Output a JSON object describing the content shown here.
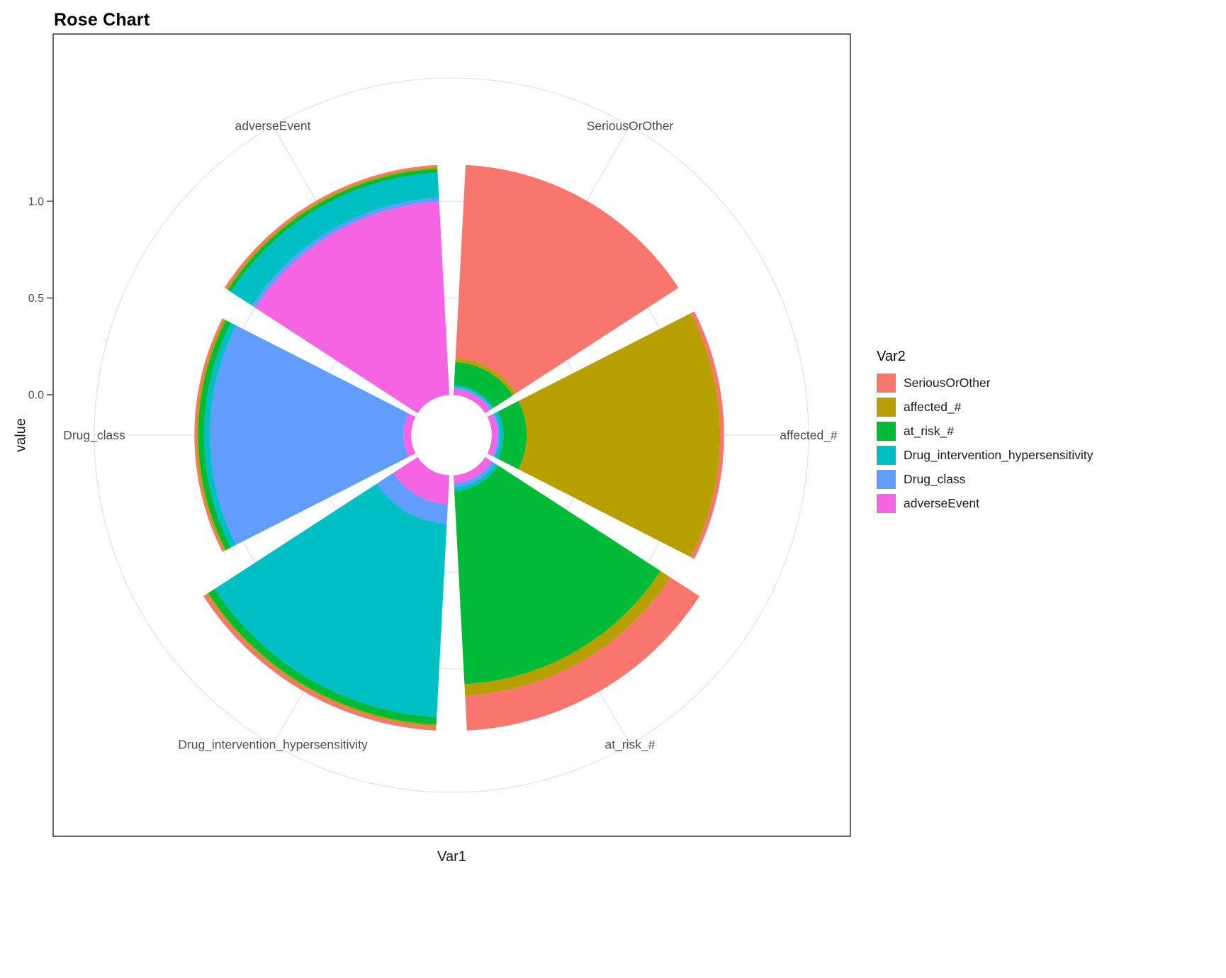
{
  "title": "Rose Chart",
  "axes": {
    "x_label": "Var1",
    "y_label": "value",
    "radial_tick_labels": [
      "1.0",
      "0.5",
      "0.0"
    ]
  },
  "legend": {
    "title": "Var2",
    "items": [
      {
        "label": "SeriousOrOther",
        "color": "#F8766D"
      },
      {
        "label": "affected_#",
        "color": "#B79F00"
      },
      {
        "label": "at_risk_#",
        "color": "#00BA38"
      },
      {
        "label": "Drug_intervention_hypersensitivity",
        "color": "#00BFC4"
      },
      {
        "label": "Drug_class",
        "color": "#619CFF"
      },
      {
        "label": "adverseEvent",
        "color": "#F564E3"
      }
    ]
  },
  "chart_data": {
    "type": "bar",
    "polar": true,
    "title": "Rose Chart",
    "xlabel": "Var1",
    "ylabel": "value",
    "categories": [
      "SeriousOrOther",
      "affected_#",
      "at_risk_#",
      "Drug_intervention_hypersensitivity",
      "Drug_class",
      "adverseEvent"
    ],
    "series": [
      {
        "name": "SeriousOrOther",
        "color": "#F8766D",
        "values": [
          1.0,
          0.02,
          0.18,
          0.02,
          0.01,
          0.01
        ]
      },
      {
        "name": "affected_#",
        "color": "#B79F00",
        "values": [
          0.02,
          1.0,
          0.06,
          0.01,
          0.01,
          0.01
        ]
      },
      {
        "name": "at_risk_#",
        "color": "#00BA38",
        "values": [
          0.12,
          0.12,
          1.0,
          0.04,
          0.03,
          0.02
        ]
      },
      {
        "name": "Drug_intervention_hypersensitivity",
        "color": "#00BFC4",
        "values": [
          0.01,
          0.02,
          0.02,
          1.0,
          0.03,
          0.13
        ]
      },
      {
        "name": "Drug_class",
        "color": "#619CFF",
        "values": [
          0.01,
          0.01,
          0.02,
          0.1,
          1.0,
          0.02
        ]
      },
      {
        "name": "adverseEvent",
        "color": "#F564E3",
        "values": [
          0.03,
          0.03,
          0.04,
          0.15,
          0.04,
          1.0
        ]
      }
    ],
    "stacking": "stacked, innermost segment is last legend entry (adverseEvent), outermost is first (SeriousOrOther)",
    "radial_ticks": [
      {
        "value": 1.0,
        "label": "1.0"
      },
      {
        "value": 0.5,
        "label": "0.5"
      },
      {
        "value": 0.0,
        "label": "0.0"
      }
    ],
    "value_range": [
      0,
      1.6
    ],
    "sector_width_deg": 54,
    "grid": true,
    "legend_position": "right"
  }
}
